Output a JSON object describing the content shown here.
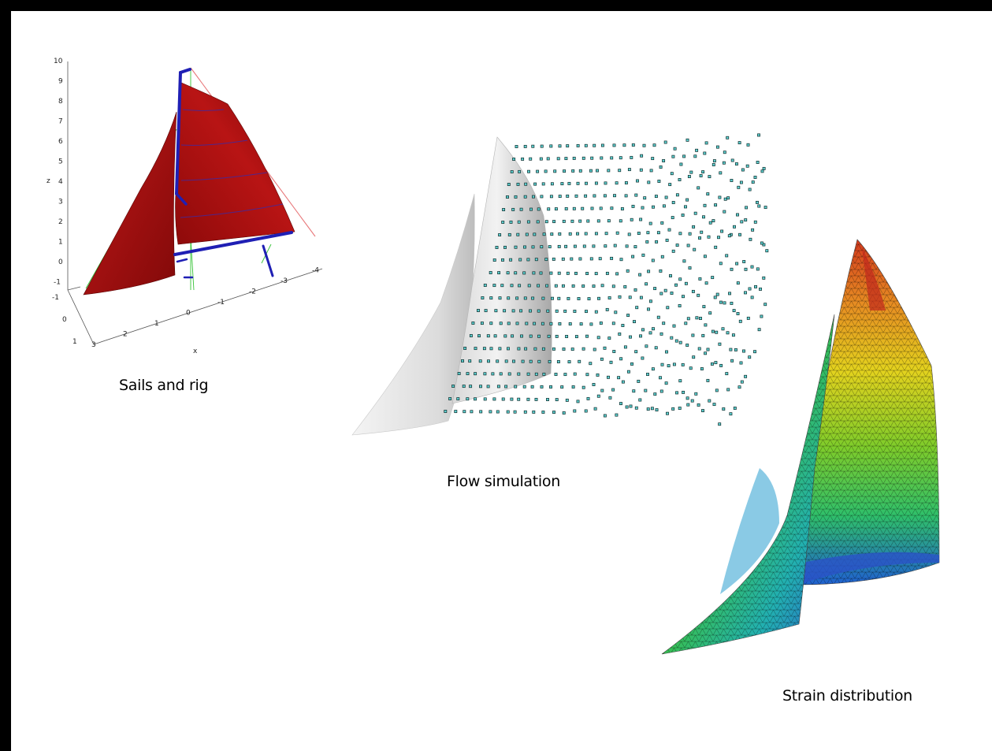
{
  "panels": [
    {
      "id": "sails-and-rig",
      "caption": "Sails and rig",
      "axes": {
        "z_label": "z",
        "x_label": "x",
        "z_ticks": [
          "10",
          "9",
          "8",
          "7",
          "6",
          "5",
          "4",
          "3",
          "2",
          "1",
          "0",
          "-1"
        ],
        "x_ticks": [
          "3",
          "2",
          "1",
          "0",
          "-1",
          "-2",
          "-3",
          "-4"
        ],
        "y_ticks": [
          "-1",
          "0",
          "1"
        ]
      },
      "colors": {
        "sail": "#a80f0f",
        "sail_dark": "#6e0606",
        "rig": "#1f1fb4",
        "stay": "#e8787a",
        "shroud": "#36c236"
      }
    },
    {
      "id": "flow-simulation",
      "caption": "Flow simulation",
      "colors": {
        "sail": "#e6e6e6",
        "sail_shade": "#9c9c9c",
        "particle_fill": "#5fd2d2",
        "particle_edge": "#0d2a2a"
      }
    },
    {
      "id": "strain-distribution",
      "caption": "Strain distribution",
      "colors": {
        "low": "#1c3fc8",
        "mid_low": "#1aa6b8",
        "mid": "#3cc23c",
        "mid_high": "#e7d21e",
        "high": "#d2321e"
      }
    }
  ]
}
